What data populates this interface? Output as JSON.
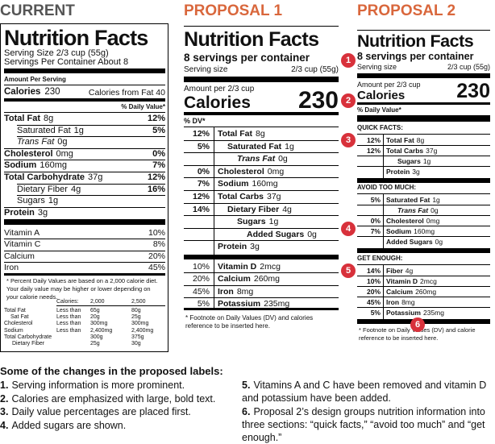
{
  "current": {
    "heading": "CURRENT",
    "title": "Nutrition Facts",
    "serving_size": "Serving Size 2/3 cup (55g)",
    "servings": "Servings Per Container About 8",
    "amount_per_serving": "Amount Per Serving",
    "calories": "Calories",
    "calories_value": "230",
    "calories_from_fat": "Calories from Fat 40",
    "daily_value_header": "% Daily Value*",
    "nutrients": [
      {
        "name": "Total Fat",
        "amount": "8g",
        "dv": "12%"
      },
      {
        "name": "Saturated Fat",
        "amount": "1g",
        "dv": "5%"
      },
      {
        "name": "Trans Fat",
        "amount": "0g",
        "dv": null
      },
      {
        "name": "Cholesterol",
        "amount": "0mg",
        "dv": "0%"
      },
      {
        "name": "Sodium",
        "amount": "160mg",
        "dv": "7%"
      },
      {
        "name": "Total Carbohydrate",
        "amount": "37g",
        "dv": "12%"
      },
      {
        "name": "Dietary Fiber",
        "amount": "4g",
        "dv": "16%"
      },
      {
        "name": "Sugars",
        "amount": "1g",
        "dv": null
      },
      {
        "name": "Protein",
        "amount": "3g",
        "dv": null
      }
    ],
    "vitamins": [
      {
        "name": "Vitamin A",
        "dv": "10%"
      },
      {
        "name": "Vitamin C",
        "dv": "8%"
      },
      {
        "name": "Calcium",
        "dv": "20%"
      },
      {
        "name": "Iron",
        "dv": "45%"
      }
    ],
    "footnote": "* Percent Daily Values are based on a 2,000 calorie diet. Your daily value may be higher or lower depending on your calorie needs.",
    "reference_table": {
      "header": [
        null,
        "Calories:",
        "2,000",
        "2,500"
      ],
      "rows": [
        [
          "Total Fat",
          "Less than",
          "65g",
          "80g"
        ],
        [
          "Sat Fat",
          "Less than",
          "20g",
          "25g"
        ],
        [
          "Cholesterol",
          "Less than",
          "300mg",
          "300mg"
        ],
        [
          "Sodium",
          "Less than",
          "2,400mg",
          "2,400mg"
        ],
        [
          "Total Carbohydrate",
          null,
          "300g",
          "375g"
        ],
        [
          "Dietary Fiber",
          null,
          "25g",
          "30g"
        ]
      ]
    }
  },
  "proposal1": {
    "heading": "PROPOSAL 1",
    "title": "Nutrition Facts",
    "servings": "8 servings per container",
    "serving_size_label": "Serving size",
    "serving_size_value": "2/3 cup (55g)",
    "amount": "Amount per 2/3 cup",
    "calories": "Calories",
    "calories_value": "230",
    "dv_header": "% DV*",
    "rows": [
      {
        "dv": "12%",
        "name": "Total Fat",
        "amount": "8g"
      },
      {
        "dv": "5%",
        "name": "Saturated Fat",
        "amount": "1g"
      },
      {
        "dv": null,
        "name": "Trans Fat",
        "amount": "0g"
      },
      {
        "dv": "0%",
        "name": "Cholesterol",
        "amount": "0mg"
      },
      {
        "dv": "7%",
        "name": "Sodium",
        "amount": "160mg"
      },
      {
        "dv": "12%",
        "name": "Total Carbs",
        "amount": "37g"
      },
      {
        "dv": "14%",
        "name": "Dietary Fiber",
        "amount": "4g"
      },
      {
        "dv": null,
        "name": "Sugars",
        "amount": "1g"
      },
      {
        "dv": null,
        "name": "Added Sugars",
        "amount": "0g"
      },
      {
        "dv": null,
        "name": "Protein",
        "amount": "3g"
      }
    ],
    "vitamins": [
      {
        "dv": "10%",
        "name": "Vitamin D",
        "amount": "2mcg"
      },
      {
        "dv": "20%",
        "name": "Calcium",
        "amount": "260mg"
      },
      {
        "dv": "45%",
        "name": "Iron",
        "amount": "8mg"
      },
      {
        "dv": "5%",
        "name": "Potassium",
        "amount": "235mg"
      }
    ],
    "footnote": "* Footnote on Daily Values (DV) and calories reference to be inserted here."
  },
  "proposal2": {
    "heading": "PROPOSAL 2",
    "title": "Nutrition Facts",
    "servings": "8 servings per container",
    "serving_size_label": "Serving size",
    "serving_size_value": "2/3 cup (55g)",
    "amount": "Amount per 2/3 cup",
    "calories": "Calories",
    "calories_value": "230",
    "dv_header": "% Daily Value*",
    "sections": [
      {
        "label": "QUICK FACTS:",
        "rows": [
          {
            "dv": "12%",
            "name": "Total Fat",
            "amount": "8g"
          },
          {
            "dv": "12%",
            "name": "Total Carbs",
            "amount": "37g"
          },
          {
            "dv": null,
            "name": "Sugars",
            "amount": "1g"
          },
          {
            "dv": null,
            "name": "Protein",
            "amount": "3g"
          }
        ]
      },
      {
        "label": "AVOID TOO MUCH:",
        "rows": [
          {
            "dv": "5%",
            "name": "Saturated Fat",
            "amount": "1g"
          },
          {
            "dv": null,
            "name": "Trans Fat",
            "amount": "0g"
          },
          {
            "dv": "0%",
            "name": "Cholesterol",
            "amount": "0mg"
          },
          {
            "dv": "7%",
            "name": "Sodium",
            "amount": "160mg"
          },
          {
            "dv": null,
            "name": "Added Sugars",
            "amount": "0g"
          }
        ]
      },
      {
        "label": "GET ENOUGH:",
        "rows": [
          {
            "dv": "14%",
            "name": "Fiber",
            "amount": "4g"
          },
          {
            "dv": "10%",
            "name": "Vitamin D",
            "amount": "2mcg"
          },
          {
            "dv": "20%",
            "name": "Calcium",
            "amount": "260mg"
          },
          {
            "dv": "45%",
            "name": "Iron",
            "amount": "8mg"
          },
          {
            "dv": "5%",
            "name": "Potassium",
            "amount": "235mg"
          }
        ]
      }
    ],
    "footnote": "* Footnote on Daily Values (DV) and calorie reference to be inserted here."
  },
  "markers": [
    "1",
    "2",
    "3",
    "4",
    "5",
    "6"
  ],
  "notes": {
    "title": "Some of the changes in the proposed labels:",
    "items": [
      {
        "number": "1.",
        "text": "Serving information is more prominent."
      },
      {
        "number": "2.",
        "text": "Calories are emphasized with large, bold text."
      },
      {
        "number": "3.",
        "text": "Daily value percentages are placed first."
      },
      {
        "number": "4.",
        "text": "Added sugars are shown."
      },
      {
        "number": "5.",
        "text": "Vitamins A and C have been removed and vitamin D and potassium have been added."
      },
      {
        "number": "6.",
        "text": "Proposal 2’s design groups nutrition information into three sections: “quick facts,” “avoid too much” and “get enough.”"
      }
    ]
  }
}
